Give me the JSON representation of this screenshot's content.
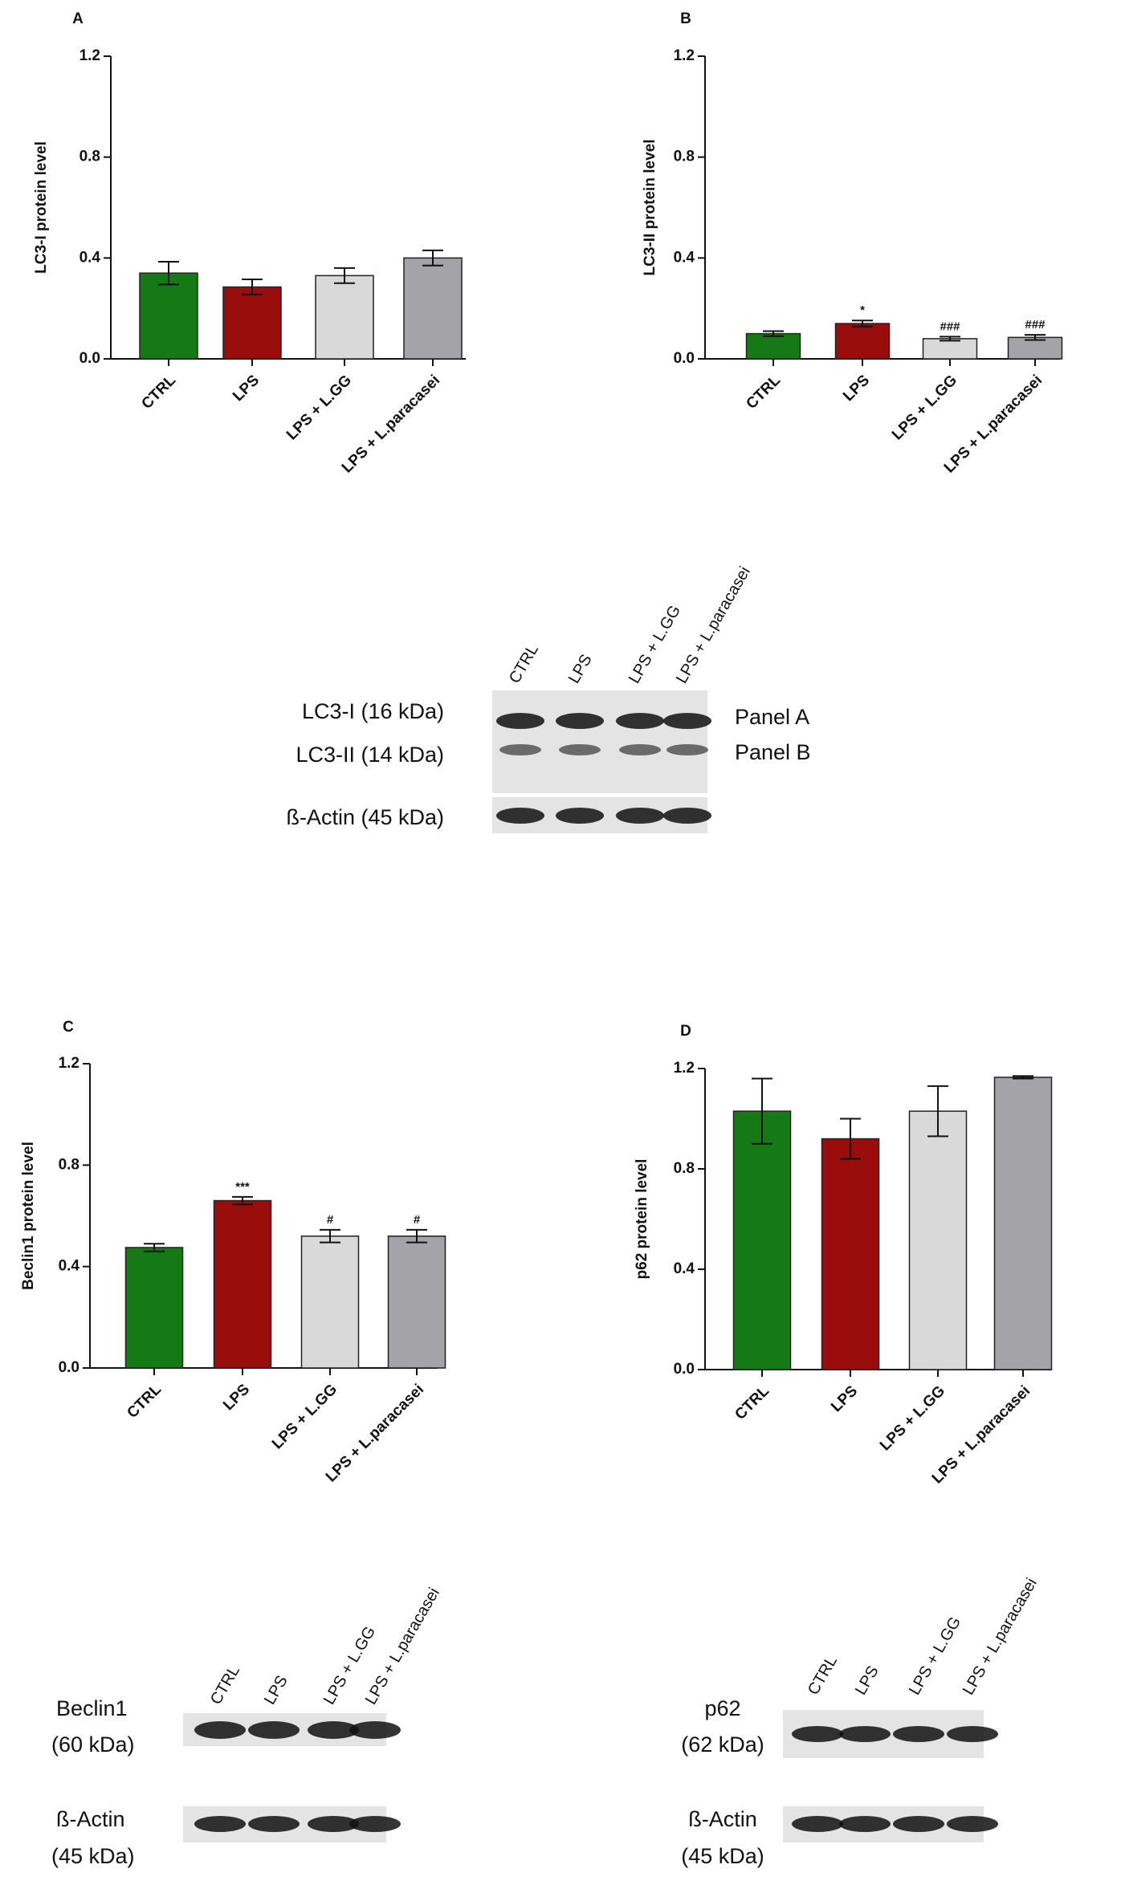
{
  "chart_data": [
    {
      "type": "bar",
      "title": "A",
      "y_label": "LC3-I protein level",
      "categories": [
        "CTRL",
        "LPS",
        "LPS + L.GG",
        "LPS + L.paracasei"
      ],
      "values": [
        0.34,
        0.285,
        0.33,
        0.4
      ],
      "errors": [
        0.045,
        0.03,
        0.03,
        0.03
      ],
      "colors": [
        "#157a15",
        "#990d0d",
        "#d9d9d9",
        "#a3a3a8"
      ],
      "ylim": [
        0,
        1.2
      ],
      "yticks": [
        {
          "value": 0,
          "label": "0.0"
        },
        0.4,
        0.8,
        1.2
      ]
    },
    {
      "type": "bar",
      "title": "B",
      "y_label": "LC3-II protein level",
      "categories": [
        "CTRL",
        "LPS",
        "LPS + L.GG",
        "LPS + L.paracasei"
      ],
      "values": [
        0.1,
        0.14,
        0.08,
        0.085
      ],
      "errors": [
        0.01,
        0.012,
        0.008,
        0.01
      ],
      "annotations": [
        null,
        "*",
        "###",
        "###"
      ],
      "colors": [
        "#157a15",
        "#990d0d",
        "#d9d9d9",
        "#a3a3a8"
      ],
      "ylim": [
        0,
        1.2
      ],
      "yticks": [
        {
          "value": 0,
          "label": "0.0"
        },
        0.4,
        0.8,
        1.2
      ]
    },
    {
      "type": "bar",
      "title": "C",
      "y_label": "Beclin1 protein level",
      "categories": [
        "CTRL",
        "LPS",
        "LPS + L.GG",
        "LPS + L.paracasei"
      ],
      "values": [
        0.475,
        0.66,
        0.52,
        0.52
      ],
      "errors": [
        0.015,
        0.015,
        0.025,
        0.025
      ],
      "annotations": [
        null,
        "***",
        "#",
        "#"
      ],
      "colors": [
        "#157a15",
        "#990d0d",
        "#d9d9d9",
        "#a3a3a8"
      ],
      "ylim": [
        0,
        1.2
      ],
      "yticks": [
        {
          "value": 0,
          "label": "0.0"
        },
        0.4,
        0.8,
        1.2
      ]
    },
    {
      "type": "bar",
      "title": "D",
      "y_label": "p62 protein level",
      "categories": [
        "CTRL",
        "LPS",
        "LPS + L.GG",
        "LPS + L.paracasei"
      ],
      "values": [
        1.03,
        0.92,
        1.03,
        1.165
      ],
      "errors": [
        0.13,
        0.08,
        0.1,
        0.005
      ],
      "colors": [
        "#157a15",
        "#990d0d",
        "#d9d9d9",
        "#a3a3a8"
      ],
      "ylim": [
        0,
        1.2
      ],
      "yticks": [
        {
          "value": 0,
          "label": "0.0"
        },
        0.4,
        0.8,
        1.2
      ]
    }
  ],
  "blots": [
    {
      "lanes": [
        "CTRL",
        "LPS",
        "LPS + L.GG",
        "LPS + L.paracasei"
      ],
      "labels": [
        "LC3-I (16 kDa)",
        "LC3-II (14 kDa)",
        "ß-Actin (45 kDa)"
      ],
      "panels": [
        "Panel A",
        "Panel B"
      ]
    },
    {
      "lanes": [
        "CTRL",
        "LPS",
        "LPS + L.GG",
        "LPS + L.paracasei"
      ],
      "labels": [
        "Beclin1",
        "(60 kDa)",
        "ß-Actin",
        "(45 kDa)"
      ]
    },
    {
      "lanes": [
        "CTRL",
        "LPS",
        "LPS + L.GG",
        "LPS + L.paracasei"
      ],
      "labels": [
        "p62",
        "(62 kDa)",
        "ß-Actin",
        "(45 kDa)"
      ]
    }
  ]
}
